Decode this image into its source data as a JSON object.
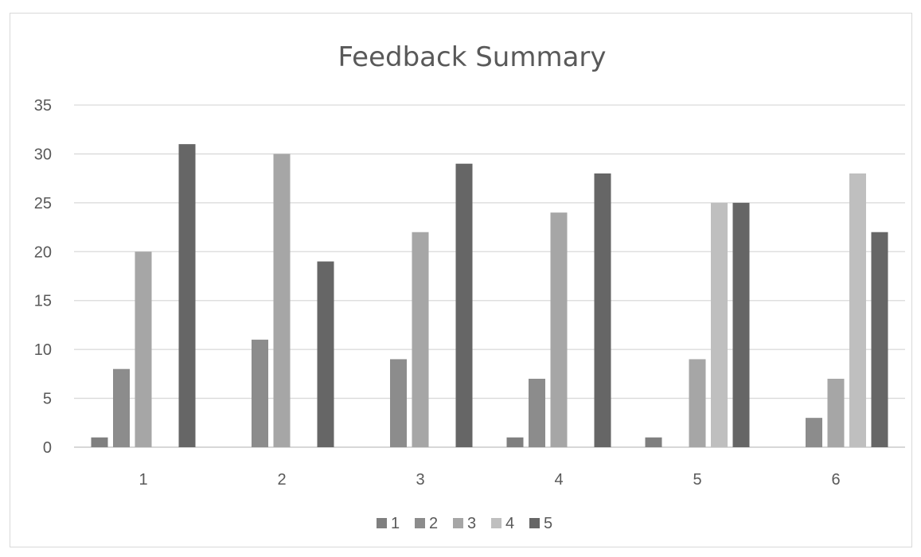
{
  "chart_data": {
    "type": "bar",
    "title": "Feedback Summary",
    "xlabel": "",
    "ylabel": "",
    "categories": [
      "1",
      "2",
      "3",
      "4",
      "5",
      "6"
    ],
    "ylim": [
      0,
      35
    ],
    "yticks": [
      "0",
      "5",
      "10",
      "15",
      "20",
      "25",
      "30",
      "35"
    ],
    "grid": true,
    "legend_position": "bottom",
    "series": [
      {
        "name": "1",
        "color": "#7f7f7f",
        "values": [
          1,
          0,
          0,
          1,
          1,
          0
        ]
      },
      {
        "name": "2",
        "color": "#8c8c8c",
        "values": [
          8,
          11,
          9,
          7,
          0,
          3
        ]
      },
      {
        "name": "3",
        "color": "#a6a6a6",
        "values": [
          20,
          30,
          22,
          24,
          9,
          7
        ]
      },
      {
        "name": "4",
        "color": "#bfbfbf",
        "values": [
          0,
          0,
          0,
          0,
          25,
          28
        ]
      },
      {
        "name": "5",
        "color": "#666666",
        "values": [
          31,
          19,
          29,
          28,
          25,
          22
        ]
      }
    ]
  }
}
